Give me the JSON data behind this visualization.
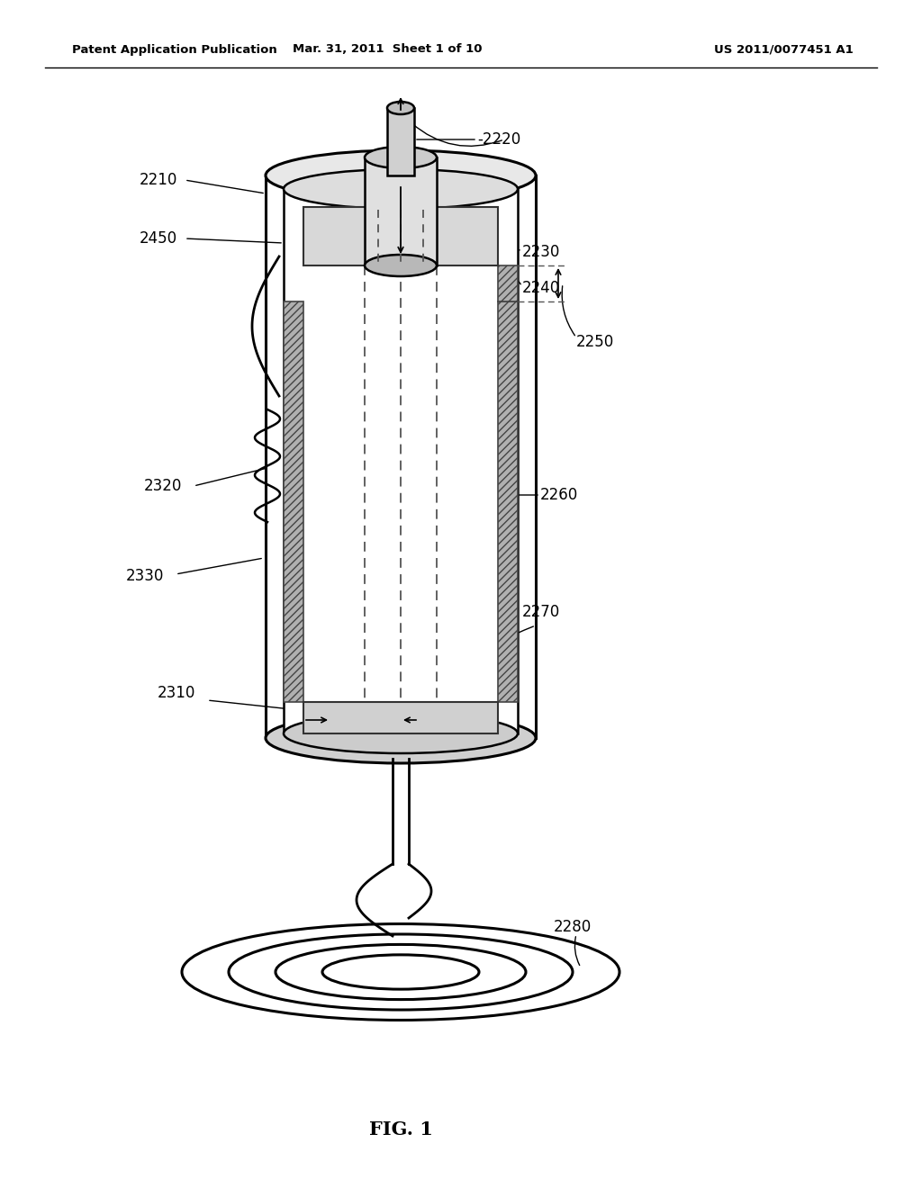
{
  "bg_color": "#ffffff",
  "line_color": "#000000",
  "header_left": "Patent Application Publication",
  "header_mid": "Mar. 31, 2011  Sheet 1 of 10",
  "header_right": "US 2011/0077451 A1",
  "fig_label": "FIG. 1"
}
